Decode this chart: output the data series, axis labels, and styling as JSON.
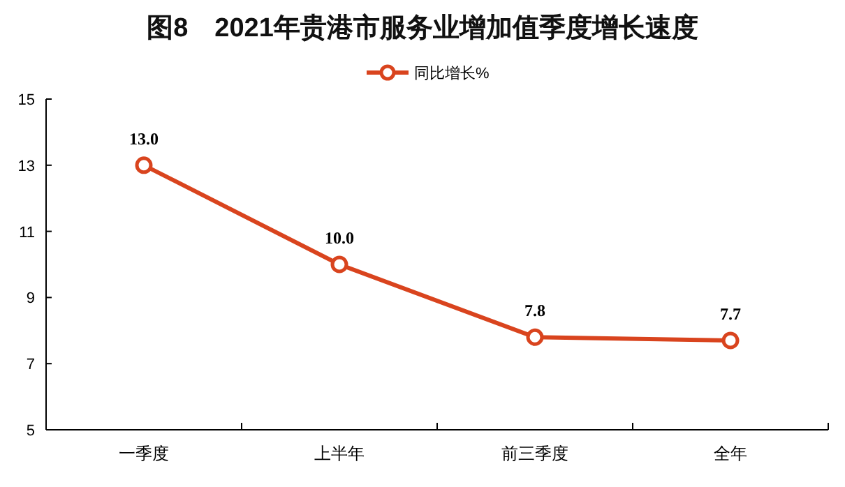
{
  "chart_data": {
    "type": "line",
    "title": "图8　2021年贵港市服务业增加值季度增长速度",
    "categories": [
      "一季度",
      "上半年",
      "前三季度",
      "全年"
    ],
    "series": [
      {
        "name": "同比增长%",
        "color": "#d9441e",
        "values": [
          13.0,
          10.0,
          7.8,
          7.7
        ],
        "value_labels": [
          "13.0",
          "10.0",
          "7.8",
          "7.7"
        ]
      }
    ],
    "ylim": [
      5,
      15
    ],
    "yticks": [
      5,
      7,
      9,
      11,
      13,
      15
    ],
    "legend": "top",
    "marker": "circle",
    "grid": false
  }
}
